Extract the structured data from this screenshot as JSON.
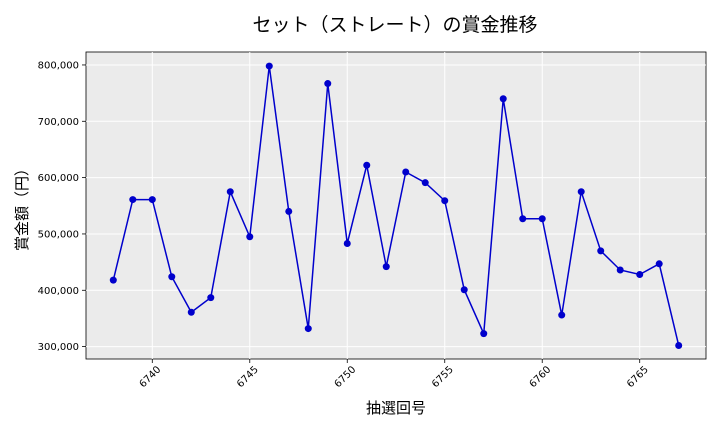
{
  "chart_data": {
    "type": "line",
    "title": "セット（ストレート）の賞金推移",
    "xlabel": "抽選回号",
    "ylabel": "賞金額（円）",
    "grid": true,
    "xlim": [
      6736.6,
      6768.4
    ],
    "ylim": [
      278000,
      823000
    ],
    "x_ticks": [
      6740,
      6745,
      6750,
      6755,
      6760,
      6765
    ],
    "y_ticks": [
      300000,
      400000,
      500000,
      600000,
      700000,
      800000
    ],
    "y_tick_labels": [
      "300,000",
      "400,000",
      "500,000",
      "600,000",
      "700,000",
      "800,000"
    ],
    "series": [
      {
        "color": "#0000cc",
        "points": [
          {
            "x": 6738,
            "y": 418000
          },
          {
            "x": 6739,
            "y": 561000
          },
          {
            "x": 6740,
            "y": 561000
          },
          {
            "x": 6741,
            "y": 424000
          },
          {
            "x": 6742,
            "y": 361000
          },
          {
            "x": 6743,
            "y": 387000
          },
          {
            "x": 6744,
            "y": 575000
          },
          {
            "x": 6745,
            "y": 495000
          },
          {
            "x": 6746,
            "y": 798000
          },
          {
            "x": 6747,
            "y": 540000
          },
          {
            "x": 6748,
            "y": 332000
          },
          {
            "x": 6749,
            "y": 767000
          },
          {
            "x": 6750,
            "y": 483000
          },
          {
            "x": 6751,
            "y": 622000
          },
          {
            "x": 6752,
            "y": 442000
          },
          {
            "x": 6753,
            "y": 610000
          },
          {
            "x": 6754,
            "y": 591000
          },
          {
            "x": 6755,
            "y": 559000
          },
          {
            "x": 6756,
            "y": 401000
          },
          {
            "x": 6757,
            "y": 323000
          },
          {
            "x": 6758,
            "y": 740000
          },
          {
            "x": 6759,
            "y": 527000
          },
          {
            "x": 6760,
            "y": 527000
          },
          {
            "x": 6761,
            "y": 356000
          },
          {
            "x": 6762,
            "y": 575000
          },
          {
            "x": 6763,
            "y": 470000
          },
          {
            "x": 6764,
            "y": 436000
          },
          {
            "x": 6765,
            "y": 428000
          },
          {
            "x": 6766,
            "y": 447000
          },
          {
            "x": 6767,
            "y": 302000
          }
        ]
      }
    ]
  },
  "colors": {
    "plot_background": "#ebebeb",
    "grid": "#ffffff",
    "line": "#0000cc",
    "marker": "#0000cc"
  }
}
